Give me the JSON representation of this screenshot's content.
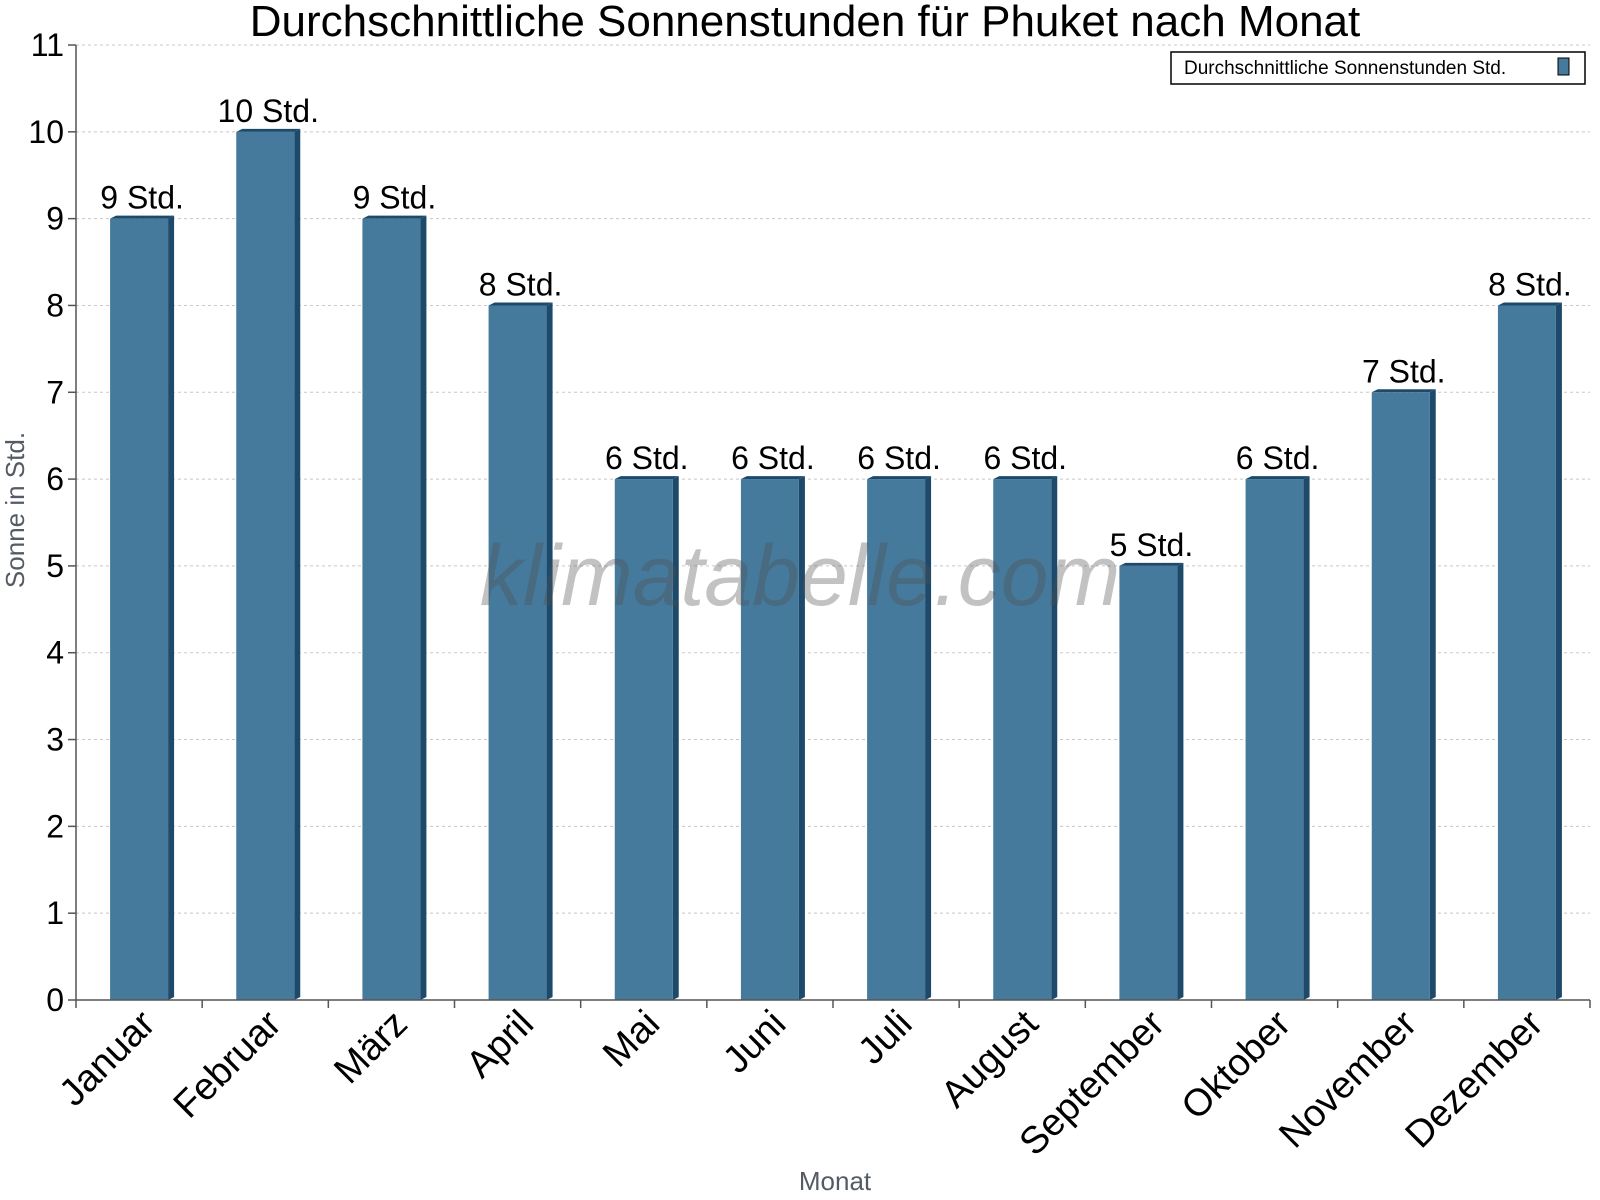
{
  "chart_data": {
    "type": "bar",
    "title": "Durchschnittliche Sonnenstunden für Phuket nach Monat",
    "xlabel": "Monat",
    "ylabel": "Sonne in Std.",
    "ylim": [
      0,
      11
    ],
    "yticks": [
      "0",
      "1",
      "2",
      "3",
      "4",
      "5",
      "6",
      "7",
      "8",
      "9",
      "10",
      "11"
    ],
    "grid": true,
    "legend_position": "top-right",
    "categories": [
      "Januar",
      "Februar",
      "März",
      "April",
      "Mai",
      "Juni",
      "Juli",
      "August",
      "September",
      "Oktober",
      "November",
      "Dezember"
    ],
    "series": [
      {
        "name": "Durchschnittliche Sonnenstunden Std.",
        "values": [
          9,
          10,
          9,
          8,
          6,
          6,
          6,
          6,
          5,
          6,
          7,
          8
        ],
        "labels": [
          "9 Std.",
          "10 Std.",
          "9 Std.",
          "8 Std.",
          "6 Std.",
          "6 Std.",
          "6 Std.",
          "6 Std.",
          "5 Std.",
          "6 Std.",
          "7 Std.",
          "8 Std."
        ]
      }
    ],
    "colors": {
      "bar_front": "#467a9c",
      "bar_side": "#1d4a6b",
      "grid": "#c8c8c8",
      "axis": "#555555"
    },
    "watermark": "klimatabelle.com"
  }
}
